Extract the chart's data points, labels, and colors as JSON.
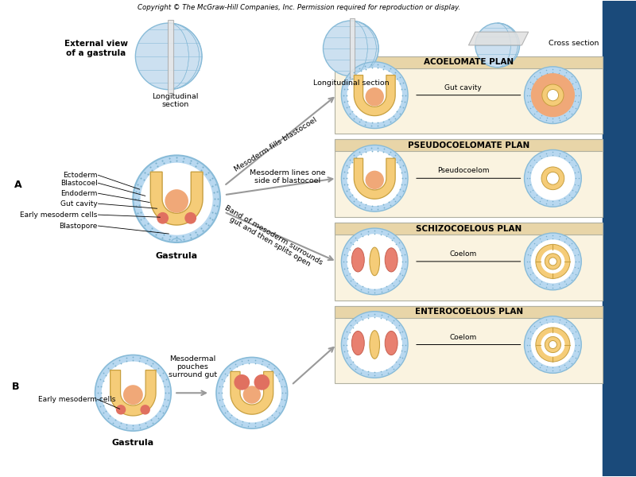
{
  "title": "Copyright © The McGraw-Hill Companies, Inc. Permission required for reproduction or display.",
  "bg_color": "#ffffff",
  "right_bg": "#1a4a7a",
  "panel_bg": "#e8d5a8",
  "panel_bg2": "#faf3e0",
  "ecto_color": "#b8d8f0",
  "endo_color": "#f0a878",
  "meso_color": "#f5cc78",
  "spot_color": "#5599bb",
  "labels_left_A": [
    "Ectoderm",
    "Blastocoel",
    "Endoderm",
    "Gut cavity",
    "Early mesoderm cells",
    "Blastopore"
  ],
  "labels_right": [
    "ACOELOMATE PLAN",
    "PSEUDOCOELOMATE PLAN",
    "SCHIZOCOELOUS PLAN",
    "ENTEROCOELOUS PLAN"
  ],
  "label_gut_cavity": "Gut cavity",
  "label_pseudocoelom": "Pseudocoelom",
  "label_coelom": "Coelom",
  "arrow_text1": "Mesoderm fills blastocoel",
  "arrow_text2": "Mesoderm lines one\nside of blastocoel",
  "arrow_text3": "Band of mesoderm surrounds\ngut and then splits open",
  "ext_view_label": "External view\nof a gastrula",
  "long_section": "Longitudinal\nsection",
  "long_section2": "Longitudinal section",
  "cross_section": "Cross section",
  "gastrula_label": "Gastrula",
  "label_A": "A",
  "label_B": "B",
  "early_meso_B": "Early mesoderm cells",
  "meso_pouches": "Mesodermal\npouches\nsurround gut"
}
